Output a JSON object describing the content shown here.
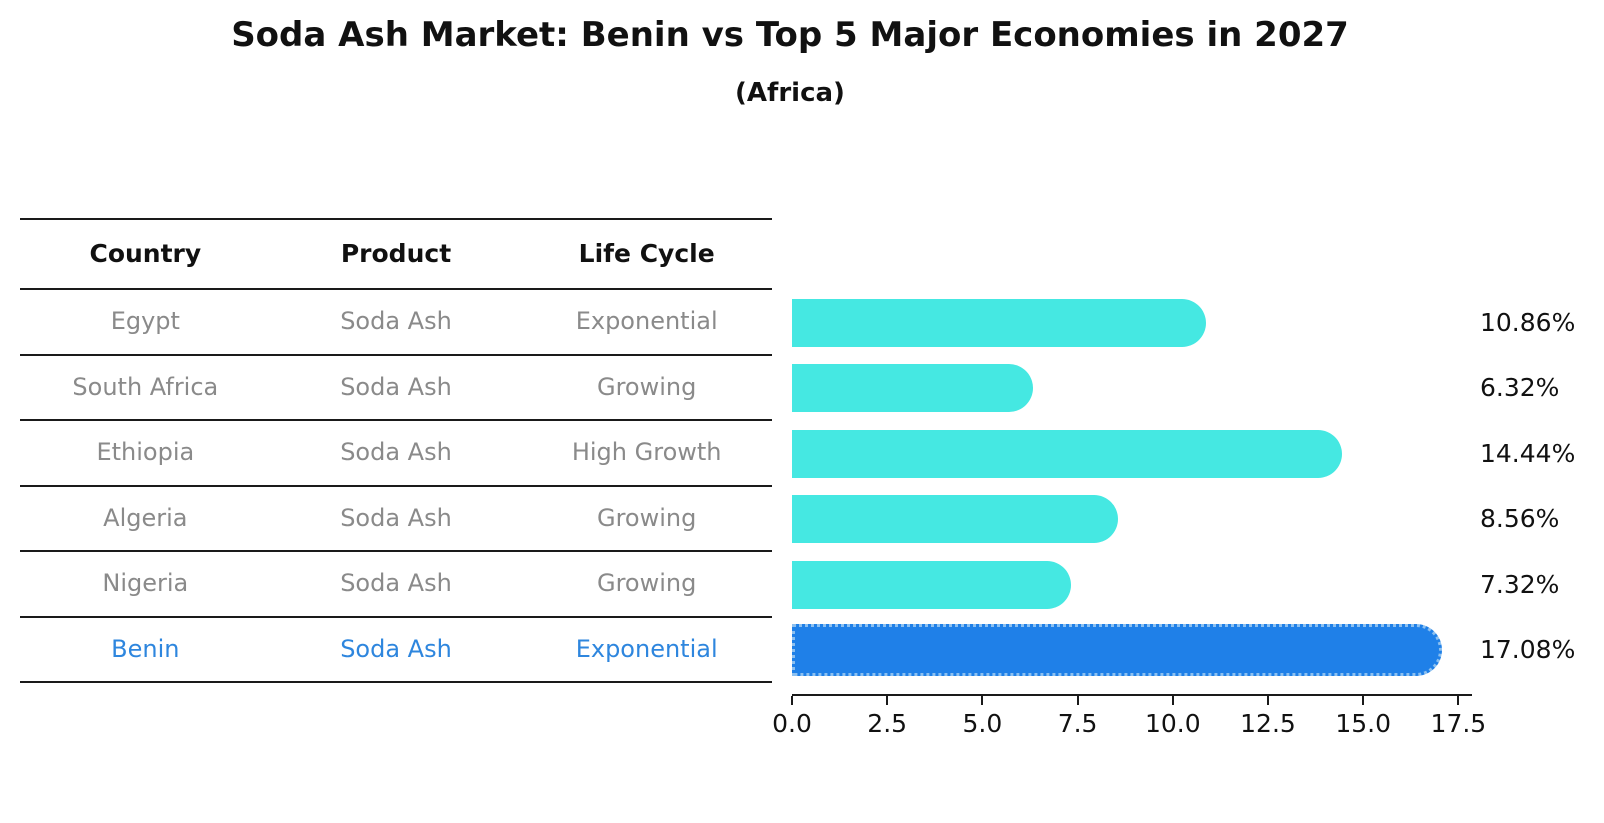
{
  "title": "Soda Ash Market: Benin vs Top 5 Major Economies in 2027",
  "subtitle": "(Africa)",
  "table": {
    "headers": [
      "Country",
      "Product",
      "Life Cycle"
    ],
    "rows": [
      {
        "country": "Egypt",
        "product": "Soda Ash",
        "life_cycle": "Exponential",
        "highlight": false
      },
      {
        "country": "South Africa",
        "product": "Soda Ash",
        "life_cycle": "Growing",
        "highlight": false
      },
      {
        "country": "Ethiopia",
        "product": "Soda Ash",
        "life_cycle": "High Growth",
        "highlight": false
      },
      {
        "country": "Algeria",
        "product": "Soda Ash",
        "life_cycle": "Growing",
        "highlight": false
      },
      {
        "country": "Nigeria",
        "product": "Soda Ash",
        "life_cycle": "Growing",
        "highlight": false
      },
      {
        "country": "Benin",
        "product": "Soda Ash",
        "life_cycle": "Exponential",
        "highlight": true
      }
    ]
  },
  "chart_data": {
    "type": "bar",
    "orientation": "horizontal",
    "title": "Soda Ash Market: Benin vs Top 5 Major Economies in 2027",
    "subtitle": "(Africa)",
    "categories": [
      "Egypt",
      "South Africa",
      "Ethiopia",
      "Algeria",
      "Nigeria",
      "Benin"
    ],
    "values": [
      10.86,
      6.32,
      14.44,
      8.56,
      7.32,
      17.08
    ],
    "value_labels": [
      "10.86%",
      "6.32%",
      "14.44%",
      "8.56%",
      "7.32%",
      "17.08%"
    ],
    "xlabel": "",
    "ylabel": "",
    "xlim": [
      0,
      17.5
    ],
    "x_ticks": [
      "0.0",
      "2.5",
      "5.0",
      "7.5",
      "10.0",
      "12.5",
      "15.0",
      "17.5"
    ],
    "grid": false,
    "legend": false,
    "bar_color": "#45E8E2",
    "highlight_index": 5,
    "highlight_bar_color": "#1F80E8",
    "highlight_border_color": "#8CC0F0",
    "highlight_text_color": "#2E86DE"
  }
}
